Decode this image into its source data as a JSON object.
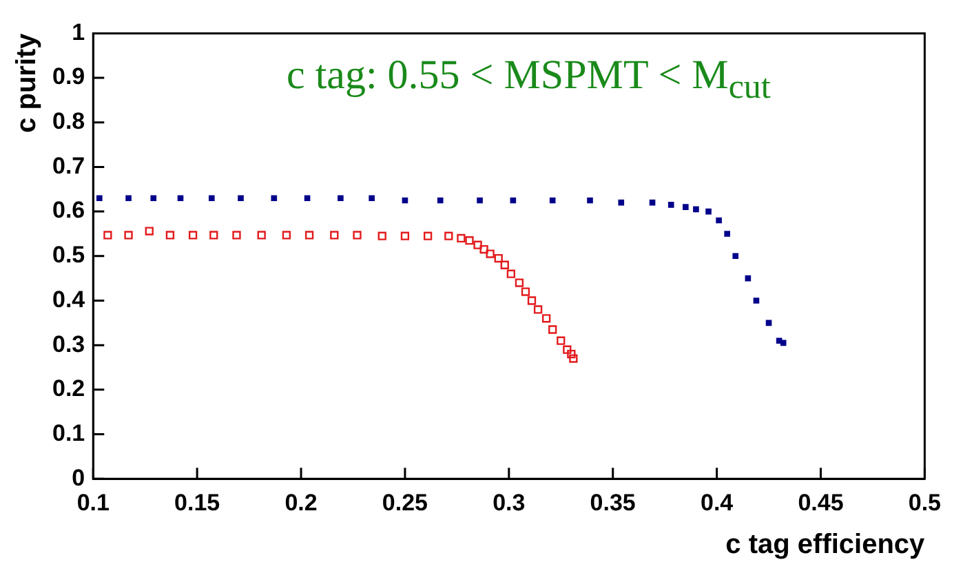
{
  "chart_data": {
    "type": "scatter",
    "title": "c tag: 0.55 < MSPMT < M$_{cut}$",
    "xlabel": "c tag efficiency",
    "ylabel": "c purity",
    "xlim": [
      0.1,
      0.5
    ],
    "ylim": [
      0,
      1
    ],
    "xticks": [
      0.1,
      0.15,
      0.2,
      0.25,
      0.3,
      0.35,
      0.4,
      0.45,
      0.5
    ],
    "yticks": [
      0,
      0.1,
      0.2,
      0.3,
      0.4,
      0.5,
      0.6,
      0.7,
      0.8,
      0.9,
      1
    ],
    "grid": false,
    "legend": false,
    "marker": "square",
    "series": [
      {
        "color": "#00008b",
        "x": [
          0.103,
          0.117,
          0.129,
          0.142,
          0.157,
          0.171,
          0.187,
          0.203,
          0.219,
          0.234,
          0.25,
          0.267,
          0.286,
          0.302,
          0.321,
          0.339,
          0.354,
          0.369,
          0.378,
          0.385,
          0.39,
          0.396,
          0.401,
          0.405,
          0.409,
          0.415,
          0.419,
          0.425,
          0.43,
          0.432
        ],
        "values": [
          0.63,
          0.63,
          0.63,
          0.63,
          0.63,
          0.63,
          0.63,
          0.63,
          0.63,
          0.63,
          0.625,
          0.625,
          0.625,
          0.625,
          0.625,
          0.625,
          0.62,
          0.62,
          0.615,
          0.61,
          0.605,
          0.6,
          0.58,
          0.55,
          0.5,
          0.45,
          0.4,
          0.35,
          0.31,
          0.305
        ]
      },
      {
        "color": "#e31a1c",
        "x": [
          0.107,
          0.117,
          0.127,
          0.137,
          0.148,
          0.158,
          0.169,
          0.181,
          0.193,
          0.204,
          0.216,
          0.227,
          0.239,
          0.25,
          0.261,
          0.271,
          0.277,
          0.281,
          0.285,
          0.288,
          0.291,
          0.295,
          0.298,
          0.301,
          0.305,
          0.308,
          0.311,
          0.314,
          0.318,
          0.321,
          0.325,
          0.328,
          0.33,
          0.331
        ],
        "values": [
          0.547,
          0.547,
          0.556,
          0.547,
          0.547,
          0.547,
          0.547,
          0.547,
          0.547,
          0.547,
          0.547,
          0.547,
          0.545,
          0.545,
          0.545,
          0.545,
          0.54,
          0.535,
          0.525,
          0.515,
          0.505,
          0.495,
          0.48,
          0.46,
          0.44,
          0.42,
          0.4,
          0.38,
          0.36,
          0.335,
          0.31,
          0.29,
          0.28,
          0.27
        ]
      }
    ]
  }
}
